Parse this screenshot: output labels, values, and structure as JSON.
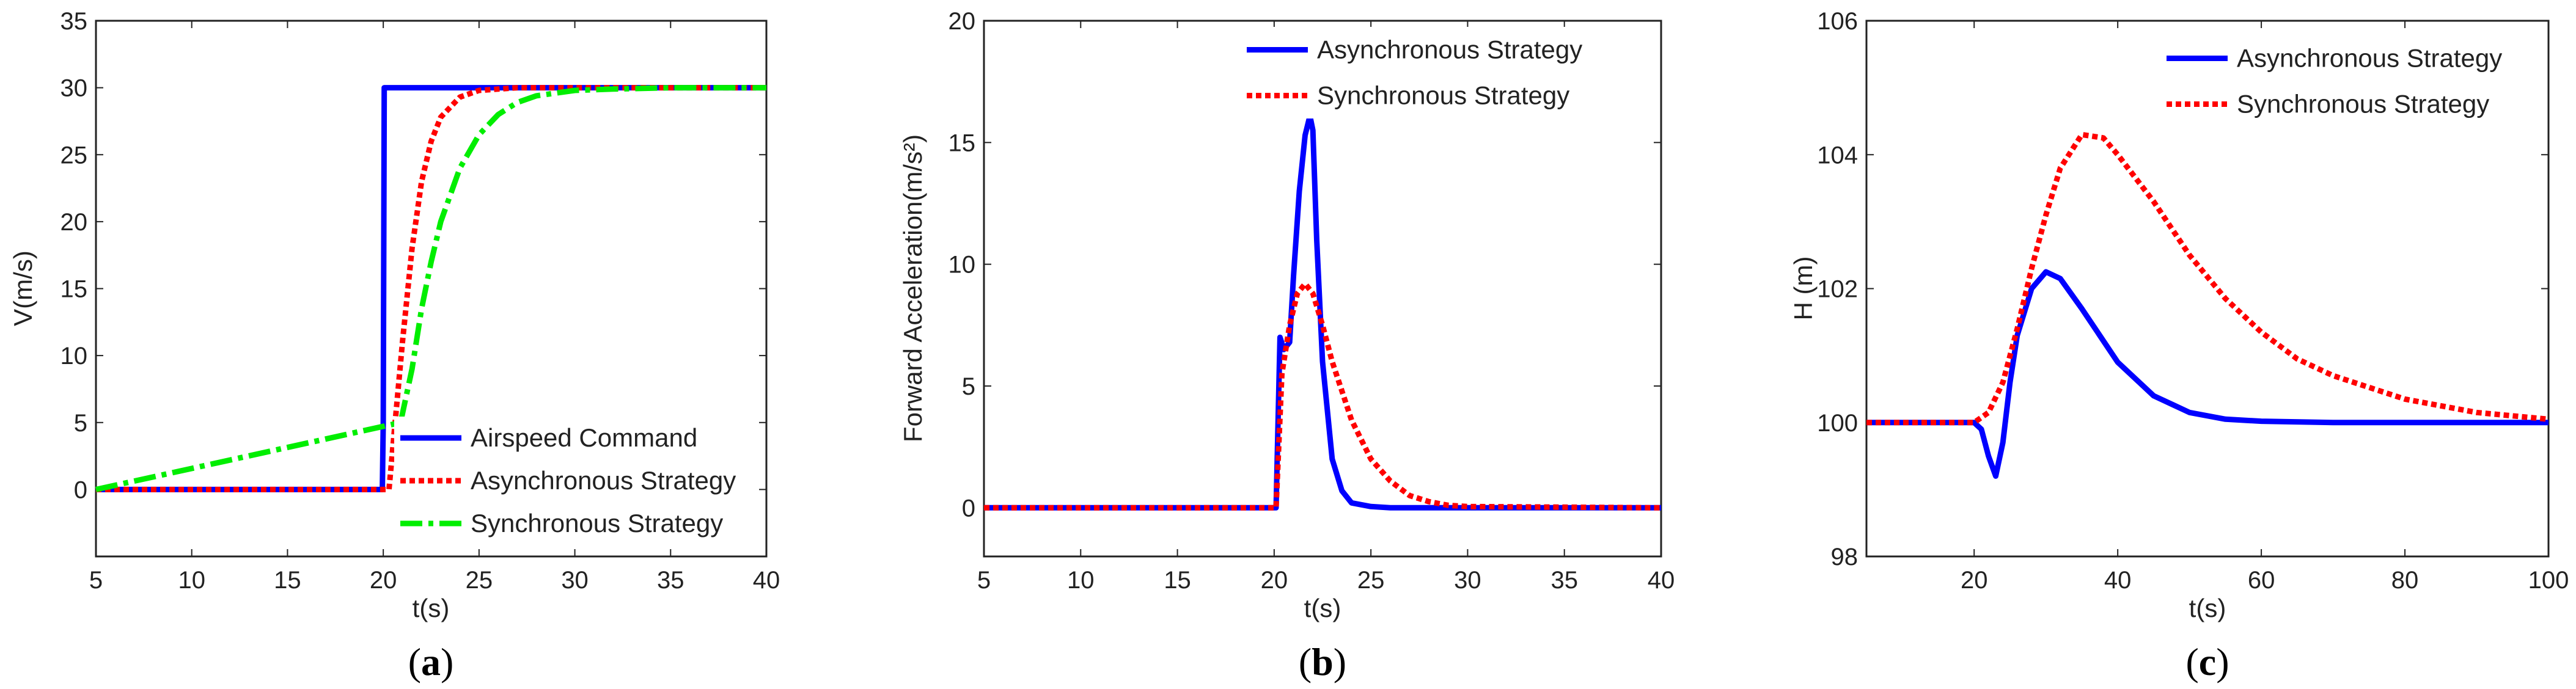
{
  "chart_data": [
    {
      "type": "line",
      "panel_label": "(a)",
      "panel_letter": "a",
      "xlabel": "t(s)",
      "ylabel": "V(m/s)",
      "xlim": [
        5,
        40
      ],
      "ylim": [
        -5,
        35
      ],
      "xticks": [
        5,
        10,
        15,
        20,
        25,
        30,
        35,
        40
      ],
      "yticks": [
        0,
        5,
        10,
        15,
        20,
        25,
        30,
        35
      ],
      "grid": false,
      "legend_position": "bottom-right",
      "series": [
        {
          "name": "Airspeed Command",
          "color": "#0000ff",
          "dash": "solid",
          "x": [
            5,
            19.95,
            20.0,
            20.05,
            40
          ],
          "y": [
            0,
            0,
            5,
            30,
            30
          ]
        },
        {
          "name": "Asynchronous Strategy",
          "color": "#ff0000",
          "dash": "dotted",
          "x": [
            5,
            20.3,
            21,
            21.5,
            22,
            22.5,
            23,
            24,
            25,
            27,
            30,
            40
          ],
          "y": [
            0,
            0,
            11,
            18,
            23,
            26,
            27.8,
            29.3,
            29.8,
            30,
            30,
            30
          ]
        },
        {
          "name": "Synchronous Strategy",
          "color": "#00ee00",
          "dash": "dashdot",
          "x": [
            5,
            20.9,
            21.5,
            22,
            22.5,
            23,
            24,
            25,
            26,
            27,
            28,
            30,
            32,
            35,
            40
          ],
          "y": [
            0,
            5,
            9,
            13.5,
            17,
            20,
            24,
            26.5,
            28,
            28.9,
            29.4,
            29.8,
            29.9,
            30,
            30
          ]
        }
      ]
    },
    {
      "type": "line",
      "panel_label": "(b)",
      "panel_letter": "b",
      "xlabel": "t(s)",
      "ylabel": "Forward Acceleration(m/s²)",
      "xlim": [
        5,
        40
      ],
      "ylim": [
        -2,
        20
      ],
      "xticks": [
        5,
        10,
        15,
        20,
        25,
        30,
        35,
        40
      ],
      "yticks": [
        0,
        5,
        10,
        15,
        20
      ],
      "grid": false,
      "legend_position": "top-right",
      "series": [
        {
          "name": "Asynchronous Strategy",
          "color": "#0000ff",
          "dash": "solid",
          "x": [
            5,
            20.1,
            20.3,
            20.5,
            20.8,
            21.0,
            21.3,
            21.6,
            21.85,
            22.0,
            22.2,
            22.5,
            23.0,
            23.5,
            24.0,
            25.0,
            26.0,
            40
          ],
          "y": [
            0,
            0,
            7.0,
            6.5,
            6.8,
            9.5,
            13.0,
            15.3,
            16.1,
            15.5,
            11.0,
            6.0,
            2.0,
            0.7,
            0.2,
            0.05,
            0,
            0
          ]
        },
        {
          "name": "Synchronous Strategy",
          "color": "#ff0000",
          "dash": "dotted",
          "x": [
            5,
            20.1,
            20.4,
            20.8,
            21.2,
            21.6,
            22.0,
            22.5,
            23,
            24,
            25,
            26,
            27,
            28,
            29,
            30,
            40
          ],
          "y": [
            0,
            0,
            5.5,
            7.5,
            8.8,
            9.2,
            8.8,
            7.5,
            6.0,
            3.6,
            2.0,
            1.1,
            0.5,
            0.25,
            0.1,
            0.05,
            0
          ]
        }
      ]
    },
    {
      "type": "line",
      "panel_label": "(c)",
      "panel_letter": "c",
      "xlabel": "t(s)",
      "ylabel": "H (m)",
      "xlim": [
        5,
        100
      ],
      "ylim": [
        98,
        106
      ],
      "xticks": [
        20,
        40,
        60,
        80,
        100
      ],
      "yticks": [
        98,
        100,
        102,
        104,
        106
      ],
      "grid": false,
      "legend_position": "top-right",
      "series": [
        {
          "name": "Asynchronous Strategy",
          "color": "#0000ff",
          "dash": "solid",
          "x": [
            5,
            20,
            21,
            22,
            23,
            24,
            25,
            26,
            28,
            30,
            32,
            35,
            40,
            45,
            50,
            55,
            60,
            70,
            80,
            100
          ],
          "y": [
            100,
            100,
            99.9,
            99.5,
            99.2,
            99.7,
            100.6,
            101.3,
            102.0,
            102.25,
            102.15,
            101.7,
            100.9,
            100.4,
            100.15,
            100.05,
            100.02,
            100,
            100,
            100
          ]
        },
        {
          "name": "Synchronous Strategy",
          "color": "#ff0000",
          "dash": "dotted",
          "x": [
            5,
            20,
            22,
            24,
            26,
            28,
            30,
            32,
            35,
            38,
            40,
            45,
            50,
            55,
            60,
            65,
            70,
            80,
            90,
            100
          ],
          "y": [
            100,
            100,
            100.15,
            100.6,
            101.4,
            102.3,
            103.1,
            103.8,
            104.3,
            104.25,
            104.0,
            103.3,
            102.5,
            101.85,
            101.35,
            100.95,
            100.7,
            100.35,
            100.15,
            100.05
          ]
        }
      ]
    }
  ]
}
